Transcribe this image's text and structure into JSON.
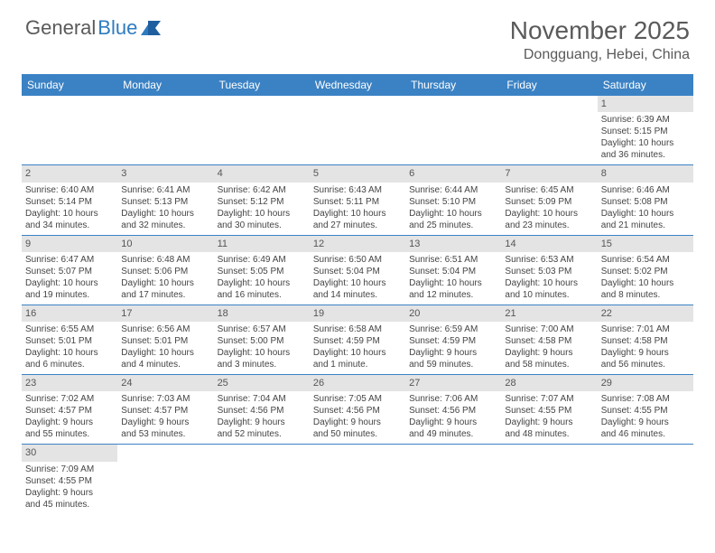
{
  "brand": {
    "part1": "General",
    "part2": "Blue"
  },
  "title": "November 2025",
  "location": "Dongguang, Hebei, China",
  "colors": {
    "header_bg": "#3b82c4",
    "header_text": "#ffffff",
    "daynum_bg": "#e4e4e4",
    "border": "#3b82c4",
    "text": "#444444",
    "brand_gray": "#5a5a5a",
    "brand_blue": "#2f7bbf"
  },
  "day_headers": [
    "Sunday",
    "Monday",
    "Tuesday",
    "Wednesday",
    "Thursday",
    "Friday",
    "Saturday"
  ],
  "weeks": [
    [
      null,
      null,
      null,
      null,
      null,
      null,
      {
        "n": "1",
        "sr": "Sunrise: 6:39 AM",
        "ss": "Sunset: 5:15 PM",
        "dl1": "Daylight: 10 hours",
        "dl2": "and 36 minutes."
      }
    ],
    [
      {
        "n": "2",
        "sr": "Sunrise: 6:40 AM",
        "ss": "Sunset: 5:14 PM",
        "dl1": "Daylight: 10 hours",
        "dl2": "and 34 minutes."
      },
      {
        "n": "3",
        "sr": "Sunrise: 6:41 AM",
        "ss": "Sunset: 5:13 PM",
        "dl1": "Daylight: 10 hours",
        "dl2": "and 32 minutes."
      },
      {
        "n": "4",
        "sr": "Sunrise: 6:42 AM",
        "ss": "Sunset: 5:12 PM",
        "dl1": "Daylight: 10 hours",
        "dl2": "and 30 minutes."
      },
      {
        "n": "5",
        "sr": "Sunrise: 6:43 AM",
        "ss": "Sunset: 5:11 PM",
        "dl1": "Daylight: 10 hours",
        "dl2": "and 27 minutes."
      },
      {
        "n": "6",
        "sr": "Sunrise: 6:44 AM",
        "ss": "Sunset: 5:10 PM",
        "dl1": "Daylight: 10 hours",
        "dl2": "and 25 minutes."
      },
      {
        "n": "7",
        "sr": "Sunrise: 6:45 AM",
        "ss": "Sunset: 5:09 PM",
        "dl1": "Daylight: 10 hours",
        "dl2": "and 23 minutes."
      },
      {
        "n": "8",
        "sr": "Sunrise: 6:46 AM",
        "ss": "Sunset: 5:08 PM",
        "dl1": "Daylight: 10 hours",
        "dl2": "and 21 minutes."
      }
    ],
    [
      {
        "n": "9",
        "sr": "Sunrise: 6:47 AM",
        "ss": "Sunset: 5:07 PM",
        "dl1": "Daylight: 10 hours",
        "dl2": "and 19 minutes."
      },
      {
        "n": "10",
        "sr": "Sunrise: 6:48 AM",
        "ss": "Sunset: 5:06 PM",
        "dl1": "Daylight: 10 hours",
        "dl2": "and 17 minutes."
      },
      {
        "n": "11",
        "sr": "Sunrise: 6:49 AM",
        "ss": "Sunset: 5:05 PM",
        "dl1": "Daylight: 10 hours",
        "dl2": "and 16 minutes."
      },
      {
        "n": "12",
        "sr": "Sunrise: 6:50 AM",
        "ss": "Sunset: 5:04 PM",
        "dl1": "Daylight: 10 hours",
        "dl2": "and 14 minutes."
      },
      {
        "n": "13",
        "sr": "Sunrise: 6:51 AM",
        "ss": "Sunset: 5:04 PM",
        "dl1": "Daylight: 10 hours",
        "dl2": "and 12 minutes."
      },
      {
        "n": "14",
        "sr": "Sunrise: 6:53 AM",
        "ss": "Sunset: 5:03 PM",
        "dl1": "Daylight: 10 hours",
        "dl2": "and 10 minutes."
      },
      {
        "n": "15",
        "sr": "Sunrise: 6:54 AM",
        "ss": "Sunset: 5:02 PM",
        "dl1": "Daylight: 10 hours",
        "dl2": "and 8 minutes."
      }
    ],
    [
      {
        "n": "16",
        "sr": "Sunrise: 6:55 AM",
        "ss": "Sunset: 5:01 PM",
        "dl1": "Daylight: 10 hours",
        "dl2": "and 6 minutes."
      },
      {
        "n": "17",
        "sr": "Sunrise: 6:56 AM",
        "ss": "Sunset: 5:01 PM",
        "dl1": "Daylight: 10 hours",
        "dl2": "and 4 minutes."
      },
      {
        "n": "18",
        "sr": "Sunrise: 6:57 AM",
        "ss": "Sunset: 5:00 PM",
        "dl1": "Daylight: 10 hours",
        "dl2": "and 3 minutes."
      },
      {
        "n": "19",
        "sr": "Sunrise: 6:58 AM",
        "ss": "Sunset: 4:59 PM",
        "dl1": "Daylight: 10 hours",
        "dl2": "and 1 minute."
      },
      {
        "n": "20",
        "sr": "Sunrise: 6:59 AM",
        "ss": "Sunset: 4:59 PM",
        "dl1": "Daylight: 9 hours",
        "dl2": "and 59 minutes."
      },
      {
        "n": "21",
        "sr": "Sunrise: 7:00 AM",
        "ss": "Sunset: 4:58 PM",
        "dl1": "Daylight: 9 hours",
        "dl2": "and 58 minutes."
      },
      {
        "n": "22",
        "sr": "Sunrise: 7:01 AM",
        "ss": "Sunset: 4:58 PM",
        "dl1": "Daylight: 9 hours",
        "dl2": "and 56 minutes."
      }
    ],
    [
      {
        "n": "23",
        "sr": "Sunrise: 7:02 AM",
        "ss": "Sunset: 4:57 PM",
        "dl1": "Daylight: 9 hours",
        "dl2": "and 55 minutes."
      },
      {
        "n": "24",
        "sr": "Sunrise: 7:03 AM",
        "ss": "Sunset: 4:57 PM",
        "dl1": "Daylight: 9 hours",
        "dl2": "and 53 minutes."
      },
      {
        "n": "25",
        "sr": "Sunrise: 7:04 AM",
        "ss": "Sunset: 4:56 PM",
        "dl1": "Daylight: 9 hours",
        "dl2": "and 52 minutes."
      },
      {
        "n": "26",
        "sr": "Sunrise: 7:05 AM",
        "ss": "Sunset: 4:56 PM",
        "dl1": "Daylight: 9 hours",
        "dl2": "and 50 minutes."
      },
      {
        "n": "27",
        "sr": "Sunrise: 7:06 AM",
        "ss": "Sunset: 4:56 PM",
        "dl1": "Daylight: 9 hours",
        "dl2": "and 49 minutes."
      },
      {
        "n": "28",
        "sr": "Sunrise: 7:07 AM",
        "ss": "Sunset: 4:55 PM",
        "dl1": "Daylight: 9 hours",
        "dl2": "and 48 minutes."
      },
      {
        "n": "29",
        "sr": "Sunrise: 7:08 AM",
        "ss": "Sunset: 4:55 PM",
        "dl1": "Daylight: 9 hours",
        "dl2": "and 46 minutes."
      }
    ],
    [
      {
        "n": "30",
        "sr": "Sunrise: 7:09 AM",
        "ss": "Sunset: 4:55 PM",
        "dl1": "Daylight: 9 hours",
        "dl2": "and 45 minutes."
      },
      null,
      null,
      null,
      null,
      null,
      null
    ]
  ]
}
